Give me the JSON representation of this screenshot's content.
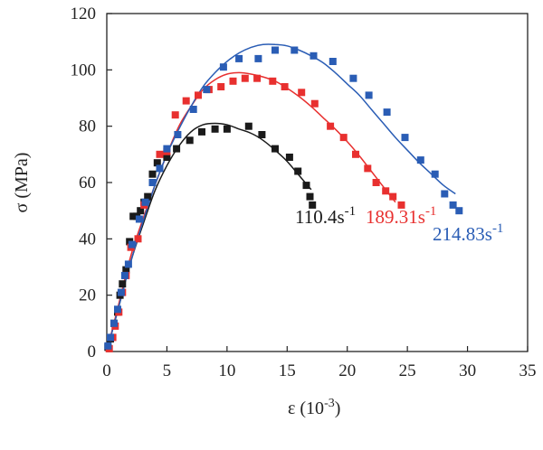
{
  "chart_data": {
    "type": "scatter",
    "title": "",
    "xlabel": "ε (10",
    "xlabel_sup": "-3",
    "xlabel_close": ")",
    "ylabel": "σ (MPa)",
    "xlim": [
      0,
      35
    ],
    "ylim": [
      0,
      120
    ],
    "xticks": [
      "0",
      "5",
      "10",
      "15",
      "20",
      "25",
      "30",
      "35"
    ],
    "yticks": [
      "0",
      "20",
      "40",
      "60",
      "80",
      "100",
      "120"
    ],
    "grid": false,
    "series": [
      {
        "name": "110.4s",
        "name_sup": "-1",
        "color": "#1a1a1a",
        "points": [
          [
            0.1,
            1.5
          ],
          [
            0.3,
            4.5
          ],
          [
            0.6,
            10
          ],
          [
            0.9,
            14
          ],
          [
            1.1,
            20
          ],
          [
            1.3,
            24
          ],
          [
            1.6,
            29
          ],
          [
            1.9,
            39
          ],
          [
            2.2,
            48
          ],
          [
            2.5,
            48
          ],
          [
            2.8,
            50
          ],
          [
            3.1,
            53
          ],
          [
            3.4,
            55
          ],
          [
            3.8,
            63
          ],
          [
            4.2,
            67
          ],
          [
            5.0,
            69
          ],
          [
            5.8,
            72
          ],
          [
            6.9,
            75
          ],
          [
            7.9,
            78
          ],
          [
            9.0,
            79
          ],
          [
            10.0,
            79
          ],
          [
            11.8,
            80
          ],
          [
            12.9,
            77
          ],
          [
            14.0,
            72
          ],
          [
            15.2,
            69
          ],
          [
            15.9,
            64
          ],
          [
            16.6,
            59
          ],
          [
            16.9,
            55
          ],
          [
            17.1,
            52
          ]
        ],
        "fit": [
          [
            0,
            0
          ],
          [
            1,
            16
          ],
          [
            2,
            32
          ],
          [
            3,
            45
          ],
          [
            4,
            57
          ],
          [
            5,
            66
          ],
          [
            6,
            73
          ],
          [
            7,
            78
          ],
          [
            8,
            80.5
          ],
          [
            9,
            81
          ],
          [
            10,
            80.5
          ],
          [
            11,
            79
          ],
          [
            12,
            77.5
          ],
          [
            13,
            75
          ],
          [
            14,
            71.5
          ],
          [
            15,
            67.5
          ],
          [
            16,
            62.5
          ],
          [
            17,
            57.5
          ]
        ]
      },
      {
        "name": "189.31s",
        "name_sup": "-1",
        "color": "#e8302f",
        "points": [
          [
            0.2,
            1
          ],
          [
            0.5,
            5
          ],
          [
            0.7,
            9
          ],
          [
            1.0,
            14
          ],
          [
            1.3,
            21
          ],
          [
            1.6,
            27
          ],
          [
            2.0,
            37
          ],
          [
            2.6,
            40
          ],
          [
            3.1,
            52
          ],
          [
            3.8,
            60
          ],
          [
            4.4,
            70
          ],
          [
            5.0,
            71
          ],
          [
            5.7,
            84
          ],
          [
            6.6,
            89
          ],
          [
            7.6,
            91
          ],
          [
            8.5,
            93
          ],
          [
            9.5,
            94
          ],
          [
            10.5,
            96
          ],
          [
            11.5,
            97
          ],
          [
            12.5,
            97
          ],
          [
            13.8,
            96
          ],
          [
            14.8,
            94
          ],
          [
            16.2,
            92
          ],
          [
            17.3,
            88
          ],
          [
            18.6,
            80
          ],
          [
            19.7,
            76
          ],
          [
            20.7,
            70
          ],
          [
            21.7,
            65
          ],
          [
            22.4,
            60
          ],
          [
            23.2,
            57
          ],
          [
            23.8,
            55
          ],
          [
            24.5,
            52
          ]
        ],
        "fit": [
          [
            0,
            0
          ],
          [
            1,
            17
          ],
          [
            2,
            34
          ],
          [
            3,
            47
          ],
          [
            4,
            59
          ],
          [
            5,
            70
          ],
          [
            6,
            80
          ],
          [
            7,
            87
          ],
          [
            8,
            93
          ],
          [
            9,
            96.5
          ],
          [
            10,
            98.5
          ],
          [
            11,
            99
          ],
          [
            12,
            98.5
          ],
          [
            13,
            97.5
          ],
          [
            14,
            96
          ],
          [
            15,
            93.5
          ],
          [
            16,
            90.5
          ],
          [
            17,
            87
          ],
          [
            18,
            83
          ],
          [
            19,
            79
          ],
          [
            20,
            74.5
          ],
          [
            21,
            69.5
          ],
          [
            22,
            64
          ],
          [
            23,
            58.5
          ],
          [
            24,
            53
          ]
        ]
      },
      {
        "name": "214.83s",
        "name_sup": "-1",
        "color": "#2a5db5",
        "points": [
          [
            0.1,
            2
          ],
          [
            0.3,
            5
          ],
          [
            0.6,
            10
          ],
          [
            0.9,
            15
          ],
          [
            1.2,
            21
          ],
          [
            1.5,
            27
          ],
          [
            1.8,
            31
          ],
          [
            2.1,
            38
          ],
          [
            2.7,
            47
          ],
          [
            3.2,
            53
          ],
          [
            3.8,
            60
          ],
          [
            4.4,
            65
          ],
          [
            5.0,
            72
          ],
          [
            5.9,
            77
          ],
          [
            7.2,
            86
          ],
          [
            8.3,
            93
          ],
          [
            9.7,
            101
          ],
          [
            11.0,
            104
          ],
          [
            12.6,
            104
          ],
          [
            14.0,
            107
          ],
          [
            15.6,
            107
          ],
          [
            17.2,
            105
          ],
          [
            18.8,
            103
          ],
          [
            20.5,
            97
          ],
          [
            21.8,
            91
          ],
          [
            23.3,
            85
          ],
          [
            24.8,
            76
          ],
          [
            26.1,
            68
          ],
          [
            27.3,
            63
          ],
          [
            28.1,
            56
          ],
          [
            28.8,
            52
          ],
          [
            29.3,
            50
          ]
        ],
        "fit": [
          [
            0,
            0
          ],
          [
            1,
            16
          ],
          [
            2,
            32
          ],
          [
            3,
            46
          ],
          [
            4,
            59
          ],
          [
            5,
            70
          ],
          [
            6,
            79
          ],
          [
            7,
            87
          ],
          [
            8,
            94
          ],
          [
            9,
            99
          ],
          [
            10,
            103
          ],
          [
            11,
            106
          ],
          [
            12,
            108
          ],
          [
            13,
            109
          ],
          [
            14,
            109
          ],
          [
            15,
            108.5
          ],
          [
            16,
            107
          ],
          [
            17,
            105
          ],
          [
            18,
            102.5
          ],
          [
            19,
            99
          ],
          [
            20,
            95
          ],
          [
            21,
            91
          ],
          [
            22,
            86
          ],
          [
            23,
            81
          ],
          [
            24,
            76
          ],
          [
            25,
            71.5
          ],
          [
            26,
            67
          ],
          [
            27,
            63
          ],
          [
            28,
            59
          ],
          [
            29,
            56
          ]
        ]
      }
    ]
  }
}
